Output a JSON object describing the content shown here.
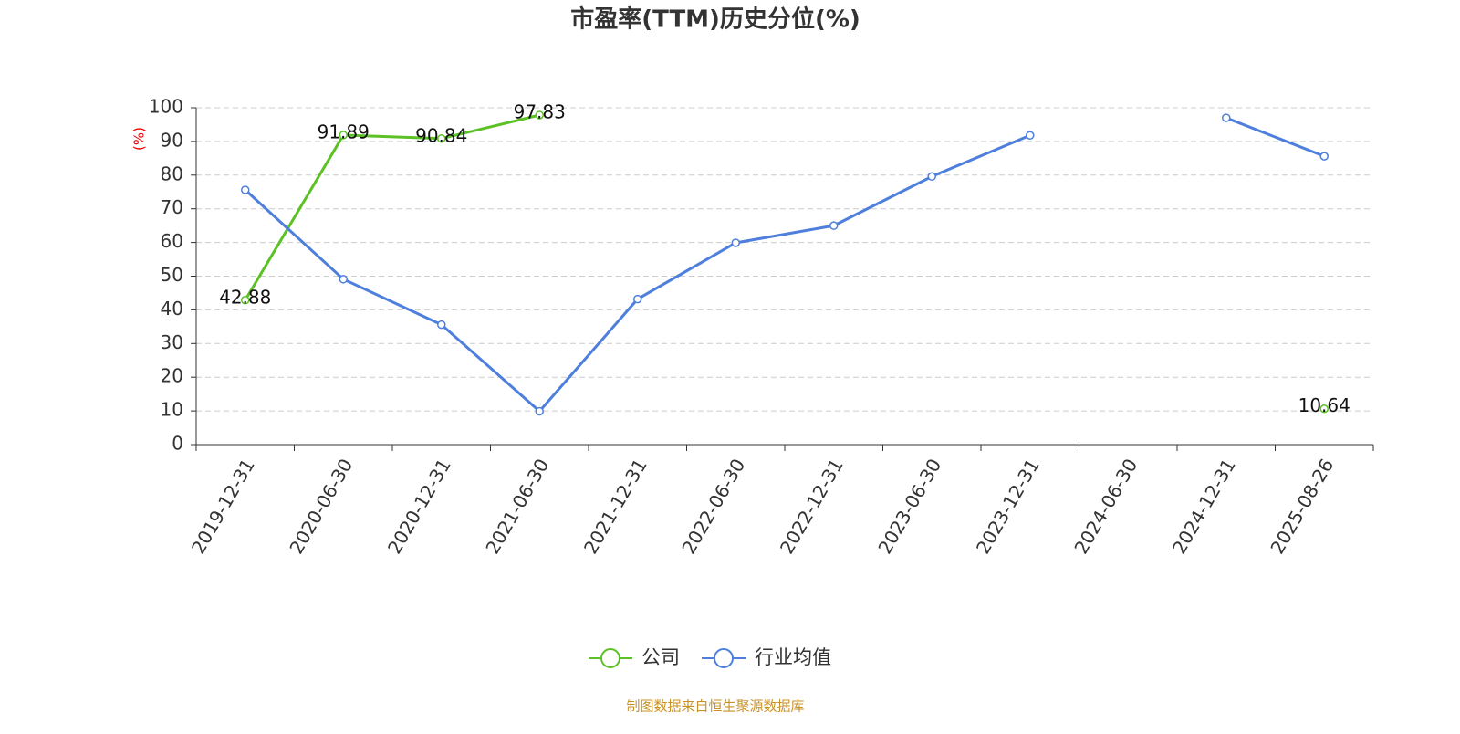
{
  "chart_data": {
    "type": "line",
    "title": "市盈率(TTM)历史分位(%)",
    "y_label": "(%)",
    "categories": [
      "2019-12-31",
      "2020-06-30",
      "2020-12-31",
      "2021-06-30",
      "2021-12-31",
      "2022-06-30",
      "2022-12-31",
      "2023-06-30",
      "2023-12-31",
      "2024-06-30",
      "2024-12-31",
      "2025-08-26"
    ],
    "series": [
      {
        "name": "公司",
        "color": "#5cc125",
        "values": [
          42.88,
          91.89,
          90.84,
          97.83,
          null,
          null,
          null,
          null,
          null,
          null,
          null,
          10.64
        ],
        "show_labels": true
      },
      {
        "name": "行业均值",
        "color": "#4e7fdc",
        "values": [
          75.6,
          49.1,
          35.6,
          9.9,
          43.2,
          59.9,
          65.0,
          79.6,
          91.8,
          null,
          97.0,
          85.6
        ],
        "show_labels": false
      }
    ],
    "ylim": [
      0,
      100
    ],
    "yticks": [
      0,
      10,
      20,
      30,
      40,
      50,
      60,
      70,
      80,
      90,
      100
    ],
    "grid": true,
    "source": "制图数据来自恒生聚源数据库"
  }
}
